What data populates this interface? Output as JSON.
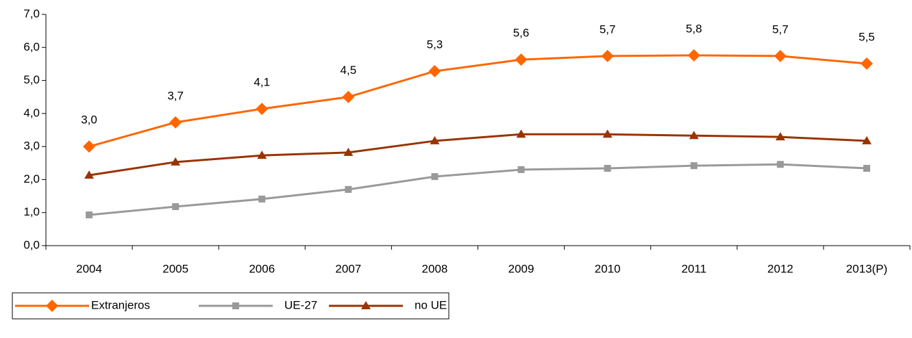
{
  "chart_data": {
    "type": "line",
    "categories": [
      "2004",
      "2005",
      "2006",
      "2007",
      "2008",
      "2009",
      "2010",
      "2011",
      "2012",
      "2013(P)"
    ],
    "series": [
      {
        "name": "Extranjeros",
        "color": "#ff6600",
        "marker": "diamond",
        "values": [
          3.0,
          3.73,
          4.14,
          4.5,
          5.28,
          5.63,
          5.74,
          5.76,
          5.74,
          5.51
        ],
        "value_labels": [
          "3,0",
          "3,7",
          "4,1",
          "4,5",
          "5,3",
          "5,6",
          "5,7",
          "5,8",
          "5,7",
          "5,5"
        ]
      },
      {
        "name": "UE-27",
        "color": "#999999",
        "marker": "square",
        "values": [
          0.93,
          1.18,
          1.41,
          1.7,
          2.09,
          2.3,
          2.34,
          2.42,
          2.46,
          2.34
        ]
      },
      {
        "name": "no UE",
        "color": "#993300",
        "marker": "triangle",
        "values": [
          2.13,
          2.53,
          2.73,
          2.82,
          3.17,
          3.37,
          3.37,
          3.33,
          3.29,
          3.17
        ]
      }
    ],
    "ylim": [
      0,
      7
    ],
    "yticks": [
      {
        "value": 0,
        "label": "0,0"
      },
      {
        "value": 1,
        "label": "1,0"
      },
      {
        "value": 2,
        "label": "2,0"
      },
      {
        "value": 3,
        "label": "3,0"
      },
      {
        "value": 4,
        "label": "4,0"
      },
      {
        "value": 5,
        "label": "5,0"
      },
      {
        "value": 6,
        "label": "6,0"
      },
      {
        "value": 7,
        "label": "7,0"
      }
    ],
    "grid": false,
    "legend": "bottom-left"
  }
}
